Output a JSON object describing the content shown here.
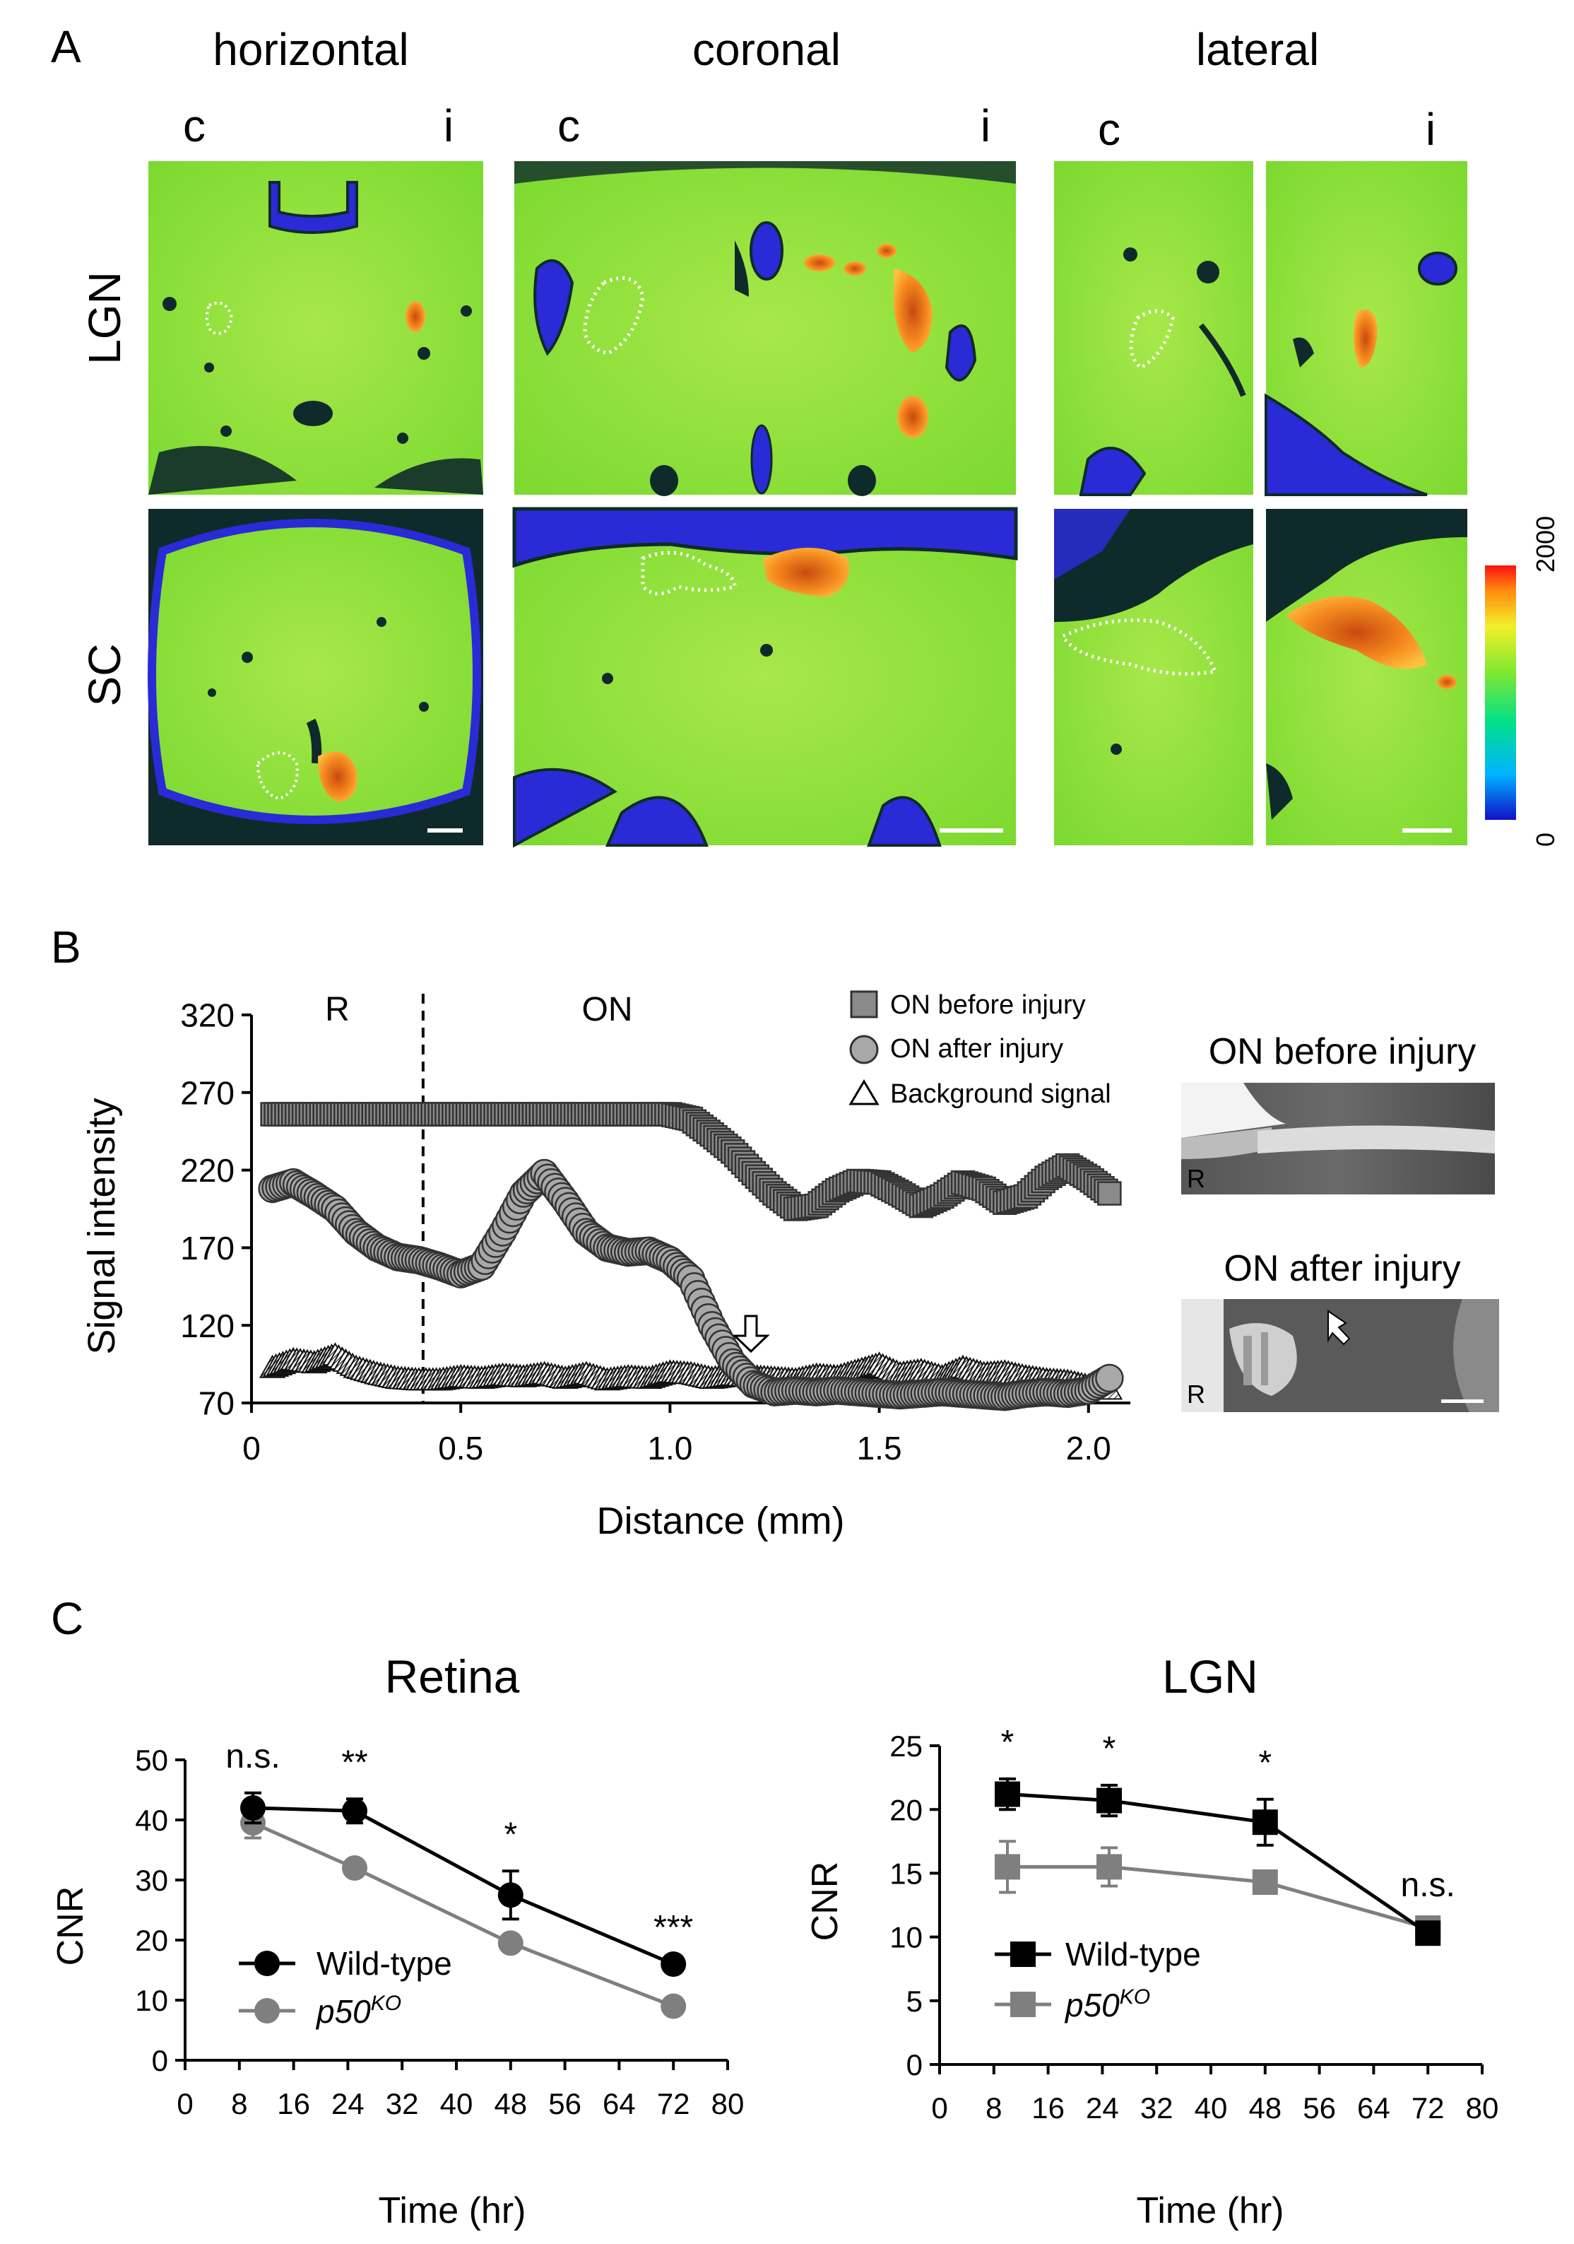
{
  "panel_letters": [
    "A",
    "B",
    "C"
  ],
  "panel_a": {
    "view_titles": [
      "horizontal",
      "coronal",
      "lateral"
    ],
    "side_labels": [
      "c",
      "i"
    ],
    "row_labels": [
      "LGN",
      "SC"
    ],
    "colorbar": {
      "min_label": "0",
      "max_label": "2000"
    },
    "colors": {
      "bg": "#8ee03a",
      "blue": "#2a2bd6",
      "dark": "#0f2a2a",
      "hot": "#f07a1c"
    }
  },
  "chart_data": [
    {
      "id": "B",
      "type": "scatter",
      "xlabel": "Distance (mm)",
      "ylabel": "Signal intensity",
      "xlim": [
        0,
        2.1
      ],
      "ylim": [
        70,
        320
      ],
      "xticks": [
        0,
        0.5,
        1.0,
        1.5,
        2.0
      ],
      "xtick_labels": [
        "0",
        "0.5",
        "1.0",
        "1.5",
        "2.0"
      ],
      "yticks": [
        70,
        120,
        170,
        220,
        270,
        320
      ],
      "region_labels": [
        "R",
        "ON"
      ],
      "divider_x": 0.41,
      "series": [
        {
          "name": "ON before injury",
          "marker": "square",
          "x": [
            0.05,
            0.1,
            0.15,
            0.2,
            0.25,
            0.3,
            0.35,
            0.4,
            0.45,
            0.5,
            0.55,
            0.6,
            0.65,
            0.7,
            0.75,
            0.8,
            0.85,
            0.9,
            0.95,
            1.0,
            1.05,
            1.1,
            1.15,
            1.2,
            1.25,
            1.3,
            1.35,
            1.4,
            1.45,
            1.5,
            1.55,
            1.6,
            1.65,
            1.7,
            1.75,
            1.8,
            1.85,
            1.9,
            1.95,
            2.0,
            2.05
          ],
          "y": [
            256,
            256,
            256,
            256,
            256,
            256,
            256,
            256,
            256,
            256,
            256,
            256,
            256,
            256,
            256,
            256,
            256,
            256,
            256,
            256,
            253,
            243,
            232,
            218,
            205,
            195,
            197,
            207,
            213,
            212,
            205,
            197,
            203,
            212,
            208,
            199,
            203,
            215,
            223,
            215,
            205
          ]
        },
        {
          "name": "ON after injury",
          "marker": "circle",
          "x": [
            0.05,
            0.1,
            0.15,
            0.2,
            0.25,
            0.3,
            0.35,
            0.4,
            0.45,
            0.5,
            0.55,
            0.6,
            0.65,
            0.7,
            0.75,
            0.8,
            0.85,
            0.9,
            0.95,
            1.0,
            1.05,
            1.1,
            1.15,
            1.2,
            1.25,
            1.3,
            1.35,
            1.4,
            1.45,
            1.5,
            1.55,
            1.6,
            1.65,
            1.7,
            1.75,
            1.8,
            1.85,
            1.9,
            1.95,
            2.0,
            2.05
          ],
          "y": [
            208,
            212,
            204,
            195,
            180,
            170,
            164,
            162,
            158,
            153,
            158,
            180,
            205,
            218,
            200,
            180,
            170,
            167,
            168,
            162,
            150,
            120,
            96,
            82,
            77,
            78,
            77,
            78,
            77,
            76,
            75,
            76,
            77,
            76,
            75,
            74,
            76,
            77,
            76,
            78,
            86
          ]
        },
        {
          "name": "Background signal",
          "marker": "triangle",
          "x": [
            0.05,
            0.1,
            0.15,
            0.2,
            0.25,
            0.3,
            0.35,
            0.4,
            0.45,
            0.5,
            0.55,
            0.6,
            0.65,
            0.7,
            0.75,
            0.8,
            0.85,
            0.9,
            0.95,
            1.0,
            1.05,
            1.1,
            1.15,
            1.2,
            1.25,
            1.3,
            1.35,
            1.4,
            1.45,
            1.5,
            1.55,
            1.6,
            1.65,
            1.7,
            1.75,
            1.8,
            1.85,
            1.9,
            1.95,
            2.0,
            2.05
          ],
          "y": [
            92,
            97,
            95,
            100,
            92,
            88,
            85,
            84,
            84,
            86,
            85,
            87,
            86,
            88,
            85,
            88,
            84,
            86,
            85,
            89,
            88,
            85,
            87,
            86,
            85,
            84,
            87,
            86,
            90,
            94,
            88,
            90,
            86,
            92,
            88,
            89,
            86,
            84,
            83,
            80,
            78
          ]
        }
      ]
    },
    {
      "id": "C-retina",
      "type": "line",
      "title": "Retina",
      "xlabel": "Time (hr)",
      "ylabel": "CNR",
      "xlim": [
        0,
        80
      ],
      "ylim": [
        0,
        50
      ],
      "xticks": [
        0,
        8,
        16,
        24,
        32,
        40,
        48,
        56,
        64,
        72,
        80
      ],
      "yticks": [
        0,
        10,
        20,
        30,
        40,
        50
      ],
      "x": [
        10,
        25,
        48,
        72
      ],
      "significance": [
        "n.s.",
        "**",
        "*",
        "***"
      ],
      "series": [
        {
          "name": "Wild-type",
          "color": "#000000",
          "marker": "circle",
          "values": [
            42,
            41.5,
            27.5,
            16
          ],
          "errors": [
            2.5,
            2,
            4,
            0
          ]
        },
        {
          "name": "p50",
          "name_sup": "KO",
          "color": "#7f7f7f",
          "marker": "circle",
          "values": [
            39.5,
            32,
            19.5,
            9
          ],
          "errors": [
            2.5,
            1,
            0,
            0
          ]
        }
      ]
    },
    {
      "id": "C-lgn",
      "type": "line",
      "title": "LGN",
      "xlabel": "Time (hr)",
      "ylabel": "CNR",
      "xlim": [
        0,
        80
      ],
      "ylim": [
        0,
        25
      ],
      "xticks": [
        0,
        8,
        16,
        24,
        32,
        40,
        48,
        56,
        64,
        72,
        80
      ],
      "yticks": [
        0,
        5,
        10,
        15,
        20,
        25
      ],
      "x": [
        10,
        25,
        48,
        72
      ],
      "significance": [
        "*",
        "*",
        "*",
        "n.s."
      ],
      "series": [
        {
          "name": "Wild-type",
          "color": "#000000",
          "marker": "square",
          "values": [
            21.2,
            20.7,
            19,
            10.3
          ],
          "errors": [
            1.2,
            1.2,
            1.8,
            0.5
          ]
        },
        {
          "name": "p50",
          "name_sup": "KO",
          "color": "#7f7f7f",
          "marker": "square",
          "values": [
            15.5,
            15.5,
            14.3,
            10.7
          ],
          "errors": [
            2,
            1.5,
            0.6,
            0.5
          ]
        }
      ]
    }
  ],
  "panel_b_insets": {
    "titles": [
      "ON before injury",
      "ON after injury"
    ],
    "retina_label": "R"
  }
}
